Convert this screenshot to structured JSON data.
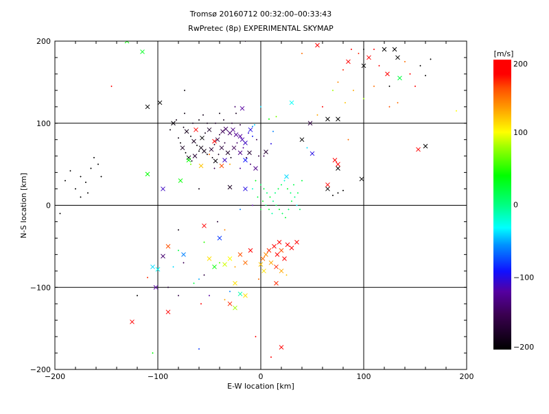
{
  "chart_data": {
    "type": "scatter",
    "title": "Tromsø 20160712 00:32:00–00:33:43",
    "subtitle": "RwPretec (8p) EXPERIMENTAL SKYMAP",
    "xlabel": "E-W location [km]",
    "ylabel": "N-S location [km]",
    "xlim": [
      -200,
      200
    ],
    "ylim": [
      -200,
      200
    ],
    "xticks": [
      -200,
      -100,
      0,
      100,
      200
    ],
    "yticks": [
      -200,
      -100,
      0,
      100,
      200
    ],
    "xtick_labels": [
      "−200",
      "−100",
      "0",
      "100",
      "200"
    ],
    "ytick_labels": [
      "−200",
      "−100",
      "0",
      "100",
      "200"
    ],
    "grid": true,
    "colorbar": {
      "label": "[m/s]",
      "range": [
        -200,
        200
      ],
      "ticks": [
        200,
        100,
        0,
        -100,
        -200
      ],
      "tick_labels": [
        "200",
        "100",
        "0",
        "−100",
        "−200"
      ],
      "placement": "right"
    },
    "marker_legend": {
      "x": "cross",
      "p": "small plus"
    },
    "points": [
      [
        -75,
        95,
        -190,
        "p"
      ],
      [
        -72,
        90,
        -185,
        "x"
      ],
      [
        -68,
        84,
        -195,
        "p"
      ],
      [
        -65,
        78,
        -180,
        "x"
      ],
      [
        -62,
        73,
        -200,
        "p"
      ],
      [
        -58,
        70,
        -190,
        "x"
      ],
      [
        -55,
        66,
        -185,
        "x"
      ],
      [
        -52,
        62,
        -195,
        "p"
      ],
      [
        -48,
        68,
        -170,
        "x"
      ],
      [
        -45,
        74,
        -175,
        "p"
      ],
      [
        -42,
        80,
        -160,
        "x"
      ],
      [
        -40,
        86,
        -165,
        "p"
      ],
      [
        -37,
        90,
        -150,
        "x"
      ],
      [
        -34,
        93,
        -145,
        "x"
      ],
      [
        -30,
        88,
        -140,
        "x"
      ],
      [
        -27,
        92,
        -130,
        "x"
      ],
      [
        -24,
        86,
        -125,
        "x"
      ],
      [
        -20,
        84,
        -120,
        "x"
      ],
      [
        -18,
        80,
        -115,
        "x"
      ],
      [
        -15,
        76,
        -110,
        "x"
      ],
      [
        -12,
        88,
        -105,
        "p"
      ],
      [
        -10,
        92,
        -100,
        "x"
      ],
      [
        -8,
        96,
        -60,
        "p"
      ],
      [
        -6,
        98,
        -40,
        "p"
      ],
      [
        -80,
        82,
        -190,
        "p"
      ],
      [
        -78,
        76,
        -195,
        "p"
      ],
      [
        -76,
        70,
        -180,
        "x"
      ],
      [
        -73,
        64,
        -200,
        "p"
      ],
      [
        -70,
        58,
        -190,
        "x"
      ],
      [
        -67,
        54,
        -185,
        "p"
      ],
      [
        -64,
        60,
        -170,
        "x"
      ],
      [
        -60,
        66,
        -195,
        "p"
      ],
      [
        -57,
        82,
        -200,
        "x"
      ],
      [
        -54,
        88,
        -185,
        "p"
      ],
      [
        -50,
        92,
        -175,
        "x"
      ],
      [
        -47,
        58,
        -190,
        "p"
      ],
      [
        -44,
        54,
        -195,
        "x"
      ],
      [
        -41,
        62,
        -180,
        "p"
      ],
      [
        -38,
        70,
        -165,
        "x"
      ],
      [
        -35,
        76,
        -160,
        "p"
      ],
      [
        -32,
        64,
        -175,
        "x"
      ],
      [
        -29,
        58,
        -185,
        "p"
      ],
      [
        -26,
        70,
        -150,
        "x"
      ],
      [
        -23,
        76,
        -140,
        "p"
      ],
      [
        -20,
        64,
        -130,
        "x"
      ],
      [
        -17,
        70,
        -120,
        "p"
      ],
      [
        -14,
        58,
        -160,
        "p"
      ],
      [
        -11,
        64,
        -170,
        "x"
      ],
      [
        -85,
        100,
        -195,
        "x"
      ],
      [
        -88,
        92,
        -190,
        "p"
      ],
      [
        -82,
        104,
        -185,
        "p"
      ],
      [
        -66,
        100,
        -180,
        "p"
      ],
      [
        -60,
        104,
        -190,
        "p"
      ],
      [
        -52,
        100,
        -185,
        "p"
      ],
      [
        -44,
        100,
        -175,
        "p"
      ],
      [
        -36,
        104,
        -180,
        "p"
      ],
      [
        -28,
        100,
        -170,
        "p"
      ],
      [
        -20,
        98,
        -160,
        "p"
      ],
      [
        -74,
        112,
        -190,
        "p"
      ],
      [
        -56,
        110,
        -185,
        "p"
      ],
      [
        -40,
        112,
        -190,
        "p"
      ],
      [
        -24,
        112,
        -180,
        "p"
      ],
      [
        -74,
        140,
        -195,
        "p"
      ],
      [
        -8,
        84,
        -90,
        "p"
      ],
      [
        -4,
        80,
        -150,
        "p"
      ],
      [
        -2,
        60,
        -160,
        "p"
      ],
      [
        -63,
        92,
        190,
        "x"
      ],
      [
        -45,
        78,
        180,
        "x"
      ],
      [
        -50,
        62,
        150,
        "p"
      ],
      [
        -30,
        50,
        130,
        "p"
      ],
      [
        -38,
        48,
        160,
        "x"
      ],
      [
        -70,
        55,
        40,
        "x"
      ],
      [
        -68,
        50,
        70,
        "p"
      ],
      [
        -58,
        48,
        120,
        "x"
      ],
      [
        -20,
        45,
        -120,
        "p"
      ],
      [
        -35,
        55,
        -110,
        "x"
      ],
      [
        -45,
        45,
        -150,
        "p"
      ],
      [
        -15,
        55,
        -90,
        "x"
      ],
      [
        -10,
        50,
        -140,
        "p"
      ],
      [
        -5,
        45,
        -130,
        "x"
      ],
      [
        3,
        60,
        -150,
        "p"
      ],
      [
        5,
        65,
        -170,
        "x"
      ],
      [
        10,
        75,
        -100,
        "p"
      ],
      [
        12,
        90,
        -60,
        "p"
      ],
      [
        -18,
        118,
        -120,
        "x"
      ],
      [
        -25,
        120,
        -140,
        "p"
      ],
      [
        0,
        120,
        -40,
        "p"
      ],
      [
        8,
        105,
        40,
        "p"
      ],
      [
        15,
        108,
        70,
        "p"
      ],
      [
        -5,
        30,
        30,
        "p"
      ],
      [
        0,
        25,
        10,
        "p"
      ],
      [
        3,
        20,
        20,
        "p"
      ],
      [
        6,
        15,
        5,
        "p"
      ],
      [
        9,
        10,
        25,
        "p"
      ],
      [
        12,
        5,
        0,
        "p"
      ],
      [
        15,
        0,
        15,
        "p"
      ],
      [
        18,
        -5,
        30,
        "p"
      ],
      [
        21,
        -10,
        10,
        "p"
      ],
      [
        24,
        -15,
        25,
        "p"
      ],
      [
        27,
        -5,
        5,
        "p"
      ],
      [
        30,
        5,
        20,
        "p"
      ],
      [
        33,
        10,
        0,
        "p"
      ],
      [
        36,
        15,
        15,
        "p"
      ],
      [
        2,
        5,
        30,
        "p"
      ],
      [
        5,
        0,
        10,
        "p"
      ],
      [
        8,
        -5,
        25,
        "p"
      ],
      [
        11,
        -10,
        -10,
        "p"
      ],
      [
        14,
        15,
        0,
        "p"
      ],
      [
        17,
        20,
        20,
        "p"
      ],
      [
        20,
        25,
        10,
        "p"
      ],
      [
        23,
        30,
        -20,
        "p"
      ],
      [
        26,
        20,
        30,
        "p"
      ],
      [
        29,
        15,
        5,
        "p"
      ],
      [
        32,
        25,
        15,
        "p"
      ],
      [
        35,
        0,
        -30,
        "p"
      ],
      [
        38,
        -5,
        10,
        "p"
      ],
      [
        -3,
        10,
        20,
        "p"
      ],
      [
        0,
        -5,
        25,
        "p"
      ],
      [
        -8,
        20,
        -20,
        "p"
      ],
      [
        40,
        30,
        20,
        "p"
      ],
      [
        25,
        35,
        -40,
        "x"
      ],
      [
        -15,
        20,
        -100,
        "x"
      ],
      [
        -8,
        0,
        -120,
        "p"
      ],
      [
        2,
        -65,
        150,
        "x"
      ],
      [
        5,
        -60,
        140,
        "x"
      ],
      [
        8,
        -55,
        170,
        "x"
      ],
      [
        10,
        -70,
        130,
        "x"
      ],
      [
        13,
        -50,
        190,
        "x"
      ],
      [
        16,
        -60,
        180,
        "x"
      ],
      [
        18,
        -45,
        200,
        "x"
      ],
      [
        20,
        -55,
        160,
        "x"
      ],
      [
        23,
        -65,
        190,
        "x"
      ],
      [
        26,
        -48,
        200,
        "x"
      ],
      [
        30,
        -52,
        180,
        "x"
      ],
      [
        35,
        -45,
        195,
        "x"
      ],
      [
        0,
        -72,
        120,
        "x"
      ],
      [
        3,
        -80,
        110,
        "x"
      ],
      [
        -2,
        -90,
        150,
        "p"
      ],
      [
        15,
        -75,
        170,
        "x"
      ],
      [
        20,
        -80,
        130,
        "x"
      ],
      [
        -20,
        -60,
        160,
        "x"
      ],
      [
        -15,
        -70,
        150,
        "x"
      ],
      [
        -25,
        -75,
        130,
        "p"
      ],
      [
        -30,
        -65,
        100,
        "x"
      ],
      [
        -35,
        -72,
        90,
        "x"
      ],
      [
        -10,
        -55,
        180,
        "x"
      ],
      [
        -40,
        -70,
        60,
        "p"
      ],
      [
        -45,
        -75,
        40,
        "x"
      ],
      [
        -50,
        -65,
        110,
        "x"
      ],
      [
        -55,
        -85,
        -160,
        "p"
      ],
      [
        -60,
        -90,
        -50,
        "p"
      ],
      [
        -65,
        -95,
        20,
        "p"
      ],
      [
        -75,
        -70,
        -150,
        "p"
      ],
      [
        -85,
        -75,
        -40,
        "p"
      ],
      [
        -95,
        -62,
        -140,
        "x"
      ],
      [
        -90,
        -50,
        160,
        "x"
      ],
      [
        -100,
        -78,
        -30,
        "x"
      ],
      [
        -102,
        -100,
        -120,
        "x"
      ],
      [
        -90,
        -100,
        -170,
        "p"
      ],
      [
        -80,
        -110,
        -160,
        "p"
      ],
      [
        -75,
        -60,
        -60,
        "x"
      ],
      [
        -80,
        -55,
        20,
        "p"
      ],
      [
        -25,
        -95,
        110,
        "x"
      ],
      [
        -30,
        -105,
        -60,
        "p"
      ],
      [
        -20,
        -108,
        -10,
        "x"
      ],
      [
        -35,
        -115,
        130,
        "p"
      ],
      [
        -30,
        -120,
        170,
        "x"
      ],
      [
        -15,
        -110,
        110,
        "x"
      ],
      [
        -25,
        -125,
        80,
        "x"
      ],
      [
        -50,
        -110,
        -120,
        "p"
      ],
      [
        -58,
        -120,
        180,
        "p"
      ],
      [
        -90,
        -130,
        190,
        "x"
      ],
      [
        -125,
        -142,
        190,
        "x"
      ],
      [
        -110,
        -88,
        170,
        "p"
      ],
      [
        -105,
        -75,
        -40,
        "x"
      ],
      [
        -120,
        -110,
        -200,
        "p"
      ],
      [
        -105,
        -180,
        40,
        "p"
      ],
      [
        -60,
        -175,
        -80,
        "p"
      ],
      [
        -5,
        -160,
        180,
        "p"
      ],
      [
        20,
        -173,
        200,
        "x"
      ],
      [
        10,
        -185,
        190,
        "p"
      ],
      [
        15,
        -95,
        170,
        "x"
      ],
      [
        25,
        -85,
        120,
        "p"
      ],
      [
        -130,
        200,
        40,
        "x"
      ],
      [
        -115,
        187,
        30,
        "x"
      ],
      [
        -110,
        120,
        -200,
        "x"
      ],
      [
        -98,
        125,
        -200,
        "x"
      ],
      [
        -145,
        145,
        200,
        "p"
      ],
      [
        -110,
        38,
        40,
        "x"
      ],
      [
        -95,
        20,
        -110,
        "x"
      ],
      [
        -78,
        30,
        40,
        "x"
      ],
      [
        -60,
        20,
        -190,
        "p"
      ],
      [
        -30,
        22,
        -180,
        "x"
      ],
      [
        -20,
        -5,
        -60,
        "p"
      ],
      [
        -55,
        -25,
        190,
        "x"
      ],
      [
        -35,
        -30,
        140,
        "p"
      ],
      [
        -40,
        -40,
        -80,
        "x"
      ],
      [
        -55,
        -45,
        50,
        "p"
      ],
      [
        -42,
        -20,
        -170,
        "p"
      ],
      [
        -80,
        -30,
        -190,
        "p"
      ],
      [
        -190,
        30,
        -200,
        "p"
      ],
      [
        -185,
        42,
        -200,
        "p"
      ],
      [
        -180,
        20,
        -200,
        "p"
      ],
      [
        -175,
        35,
        -200,
        "p"
      ],
      [
        -170,
        28,
        -200,
        "p"
      ],
      [
        -165,
        45,
        -200,
        "p"
      ],
      [
        -162,
        58,
        -200,
        "p"
      ],
      [
        -158,
        50,
        -200,
        "p"
      ],
      [
        -155,
        35,
        -200,
        "p"
      ],
      [
        -168,
        15,
        -200,
        "p"
      ],
      [
        -195,
        -10,
        -200,
        "p"
      ],
      [
        -175,
        10,
        -200,
        "p"
      ],
      [
        65,
        105,
        -200,
        "x"
      ],
      [
        75,
        105,
        -200,
        "x"
      ],
      [
        65,
        20,
        -200,
        "x"
      ],
      [
        75,
        15,
        -200,
        "p"
      ],
      [
        70,
        12,
        -200,
        "p"
      ],
      [
        80,
        18,
        -200,
        "p"
      ],
      [
        98,
        32,
        -200,
        "x"
      ],
      [
        40,
        80,
        -200,
        "x"
      ],
      [
        75,
        45,
        -200,
        "x"
      ],
      [
        50,
        63,
        -100,
        "x"
      ],
      [
        72,
        55,
        190,
        "x"
      ],
      [
        75,
        50,
        180,
        "x"
      ],
      [
        65,
        25,
        190,
        "x"
      ],
      [
        48,
        100,
        -160,
        "x"
      ],
      [
        30,
        125,
        -30,
        "x"
      ],
      [
        45,
        70,
        -40,
        "p"
      ],
      [
        55,
        110,
        130,
        "p"
      ],
      [
        60,
        120,
        190,
        "p"
      ],
      [
        82,
        125,
        120,
        "p"
      ],
      [
        80,
        165,
        170,
        "p"
      ],
      [
        85,
        175,
        200,
        "x"
      ],
      [
        88,
        190,
        200,
        "p"
      ],
      [
        95,
        185,
        170,
        "p"
      ],
      [
        100,
        170,
        -200,
        "x"
      ],
      [
        105,
        180,
        190,
        "x"
      ],
      [
        110,
        190,
        200,
        "p"
      ],
      [
        115,
        170,
        200,
        "p"
      ],
      [
        120,
        190,
        -200,
        "x"
      ],
      [
        123,
        160,
        200,
        "x"
      ],
      [
        130,
        190,
        -200,
        "x"
      ],
      [
        133,
        180,
        -200,
        "x"
      ],
      [
        135,
        155,
        20,
        "x"
      ],
      [
        140,
        175,
        150,
        "p"
      ],
      [
        145,
        160,
        200,
        "p"
      ],
      [
        150,
        145,
        200,
        "p"
      ],
      [
        155,
        170,
        -200,
        "p"
      ],
      [
        160,
        158,
        -200,
        "p"
      ],
      [
        165,
        178,
        -200,
        "p"
      ],
      [
        70,
        140,
        80,
        "p"
      ],
      [
        75,
        150,
        140,
        "p"
      ],
      [
        90,
        140,
        130,
        "p"
      ],
      [
        100,
        130,
        80,
        "p"
      ],
      [
        110,
        145,
        150,
        "p"
      ],
      [
        125,
        145,
        -200,
        "p"
      ],
      [
        160,
        72,
        -200,
        "x"
      ],
      [
        153,
        68,
        200,
        "x"
      ],
      [
        133,
        125,
        150,
        "p"
      ],
      [
        125,
        120,
        160,
        "p"
      ],
      [
        190,
        115,
        100,
        "p"
      ],
      [
        55,
        195,
        200,
        "x"
      ],
      [
        40,
        185,
        150,
        "p"
      ],
      [
        100,
        190,
        -200,
        "p"
      ],
      [
        -15,
        200,
        -150,
        "p"
      ],
      [
        85,
        80,
        150,
        "p"
      ]
    ]
  }
}
